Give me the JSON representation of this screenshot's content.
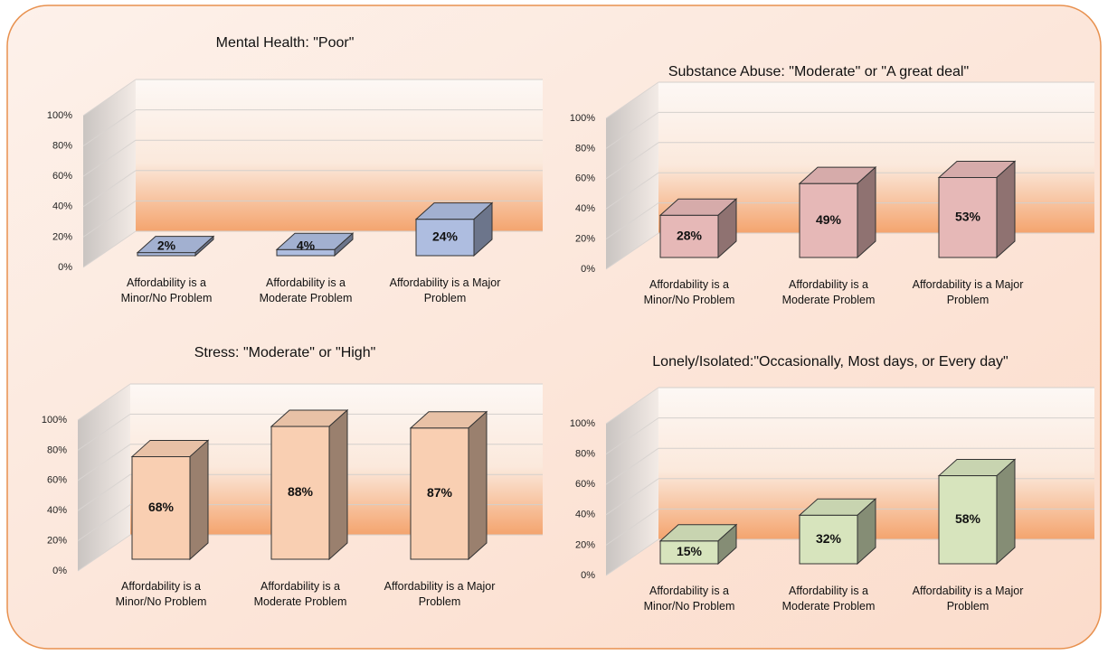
{
  "chart_data": [
    {
      "type": "bar",
      "title": "Mental Health: \"Poor\"",
      "categories": [
        "Affordability is a Minor/No Problem",
        "Affordability is a Moderate Problem",
        "Affordability is a Major Problem"
      ],
      "values": [
        2,
        4,
        24
      ],
      "value_labels": [
        "2%",
        "4%",
        "24%"
      ],
      "color": "#aebde0",
      "ylim": [
        0,
        100
      ],
      "yticks": [
        {
          "value": 0,
          "label": "0%"
        },
        {
          "value": 20,
          "label": "20%"
        },
        {
          "value": 40,
          "label": "40%"
        },
        {
          "value": 60,
          "label": "60%"
        },
        {
          "value": 80,
          "label": "80%"
        },
        {
          "value": 100,
          "label": "100%"
        }
      ],
      "grid": true
    },
    {
      "type": "bar",
      "title": "Substance Abuse: \"Moderate\" or \"A great deal\"",
      "categories": [
        "Affordability is a Minor/No Problem",
        "Affordability is a Moderate Problem",
        "Affordability is a Major Problem"
      ],
      "values": [
        28,
        49,
        53
      ],
      "value_labels": [
        "28%",
        "49%",
        "53%"
      ],
      "color": "#e6b8b7",
      "ylim": [
        0,
        100
      ],
      "yticks": [
        {
          "value": 0,
          "label": "0%"
        },
        {
          "value": 20,
          "label": "20%"
        },
        {
          "value": 40,
          "label": "40%"
        },
        {
          "value": 60,
          "label": "60%"
        },
        {
          "value": 80,
          "label": "80%"
        },
        {
          "value": 100,
          "label": "100%"
        }
      ],
      "grid": true
    },
    {
      "type": "bar",
      "title": "Stress: \"Moderate\" or \"High\"",
      "categories": [
        "Affordability is a Minor/No Problem",
        "Affordability is a Moderate Problem",
        "Affordability is a Major Problem"
      ],
      "values": [
        68,
        88,
        87
      ],
      "value_labels": [
        "68%",
        "88%",
        "87%"
      ],
      "color": "#f9cfb2",
      "ylim": [
        0,
        100
      ],
      "yticks": [
        {
          "value": 0,
          "label": "0%"
        },
        {
          "value": 20,
          "label": "20%"
        },
        {
          "value": 40,
          "label": "40%"
        },
        {
          "value": 60,
          "label": "60%"
        },
        {
          "value": 80,
          "label": "80%"
        },
        {
          "value": 100,
          "label": "100%"
        }
      ],
      "grid": true
    },
    {
      "type": "bar",
      "title": "Lonely/Isolated:\"Occasionally, Most days, or Every day\"",
      "categories": [
        "Affordability is a Minor/No Problem",
        "Affordability is a Moderate Problem",
        "Affordability is a Major Problem"
      ],
      "values": [
        15,
        32,
        58
      ],
      "value_labels": [
        "15%",
        "32%",
        "58%"
      ],
      "color": "#d7e4bd",
      "ylim": [
        0,
        100
      ],
      "yticks": [
        {
          "value": 0,
          "label": "0%"
        },
        {
          "value": 20,
          "label": "20%"
        },
        {
          "value": 40,
          "label": "40%"
        },
        {
          "value": 60,
          "label": "60%"
        },
        {
          "value": 80,
          "label": "80%"
        },
        {
          "value": 100,
          "label": "100%"
        }
      ],
      "grid": true
    }
  ]
}
